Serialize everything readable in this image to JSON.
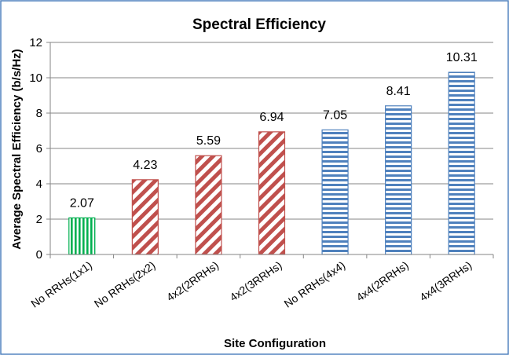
{
  "chart_data": {
    "type": "bar",
    "title": "Spectral Efficiency",
    "xlabel": "Site Configuration",
    "ylabel": "Average Spectral Efficiency (b/s/Hz)",
    "ylim": [
      0,
      12
    ],
    "yticks": [
      0,
      2,
      4,
      6,
      8,
      10,
      12
    ],
    "grid": true,
    "categories": [
      "No RRHs(1x1)",
      "No RRHs(2x2)",
      "4x2(2RRHs)",
      "4x2(3RRHs)",
      "No RRHs(4x4)",
      "4x4(2RRHs)",
      "4x4(3RRHs)"
    ],
    "values": [
      2.07,
      4.23,
      5.59,
      6.94,
      7.05,
      8.41,
      10.31
    ],
    "value_labels": [
      "2.07",
      "4.23",
      "5.59",
      "6.94",
      "7.05",
      "8.41",
      "10.31"
    ],
    "bar_styles": [
      "green-vertical-stripes",
      "red-diagonal-stripes",
      "red-diagonal-stripes",
      "red-diagonal-stripes",
      "blue-horizontal-stripes",
      "blue-horizontal-stripes",
      "blue-horizontal-stripes"
    ],
    "colors": {
      "green": "#00b050",
      "red": "#c0504d",
      "blue": "#4f81bd",
      "chart_border": "#4f81bd",
      "grid": "#868686",
      "axis": "#868686"
    }
  }
}
